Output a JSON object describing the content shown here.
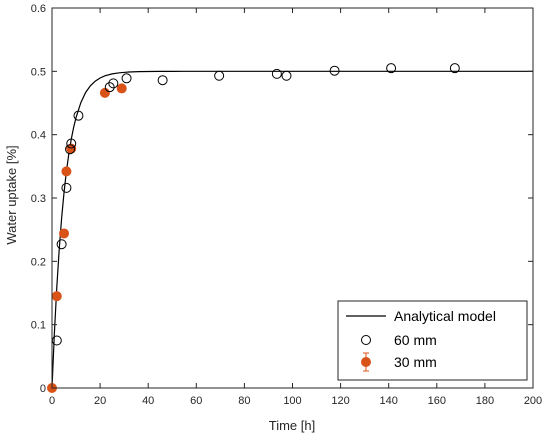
{
  "chart_data": {
    "type": "scatter",
    "xlabel": "Time [h]",
    "ylabel": "Water uptake [%]",
    "xlim": [
      0,
      200
    ],
    "ylim": [
      0,
      0.6
    ],
    "x_ticks": [
      0,
      20,
      40,
      60,
      80,
      100,
      120,
      140,
      160,
      180,
      200
    ],
    "y_ticks": [
      0,
      0.1,
      0.2,
      0.3,
      0.4,
      0.5,
      0.6
    ],
    "x_tick_labels": [
      "0",
      "20",
      "40",
      "60",
      "80",
      "100",
      "120",
      "140",
      "160",
      "180",
      "200"
    ],
    "y_tick_labels": [
      "0",
      "0.1",
      "0.2",
      "0.3",
      "0.4",
      "0.5",
      "0.6"
    ],
    "grid": false,
    "legend_position": "bottom-right",
    "series": [
      {
        "name": "Analytical model",
        "kind": "line",
        "color": "#000000",
        "x": [
          0,
          1,
          2,
          3,
          4,
          5,
          6,
          7,
          8,
          9,
          10,
          12,
          14,
          16,
          18,
          20,
          22,
          25,
          28,
          32,
          36,
          40,
          45,
          50,
          55,
          60,
          80,
          100,
          120,
          140,
          160,
          180,
          200
        ],
        "y": [
          0,
          0.0874,
          0.1595,
          0.2191,
          0.2682,
          0.3088,
          0.3423,
          0.3699,
          0.3927,
          0.4115,
          0.427,
          0.4507,
          0.4668,
          0.4774,
          0.4846,
          0.4895,
          0.4929,
          0.496,
          0.4977,
          0.499,
          0.4995,
          0.4997,
          0.4999,
          0.4999,
          0.5,
          0.5,
          0.5,
          0.5,
          0.5,
          0.5,
          0.5,
          0.5,
          0.5
        ]
      },
      {
        "name": "60 mm",
        "kind": "scatter-open",
        "color": "#000000",
        "x": [
          2,
          4,
          6,
          7.5,
          8,
          11,
          24,
          25.5,
          31,
          46,
          69.5,
          93.5,
          97.5,
          117.5,
          141,
          167.5
        ],
        "y": [
          0.075,
          0.227,
          0.316,
          0.377,
          0.386,
          0.43,
          0.475,
          0.481,
          0.489,
          0.486,
          0.493,
          0.496,
          0.493,
          0.501,
          0.505,
          0.505
        ]
      },
      {
        "name": "30 mm",
        "kind": "scatter-filled-errorbar",
        "color": "#D95319",
        "x": [
          0,
          2,
          5,
          6,
          8,
          22,
          29
        ],
        "y": [
          0,
          0.145,
          0.244,
          0.342,
          0.378,
          0.466,
          0.473
        ]
      }
    ]
  }
}
